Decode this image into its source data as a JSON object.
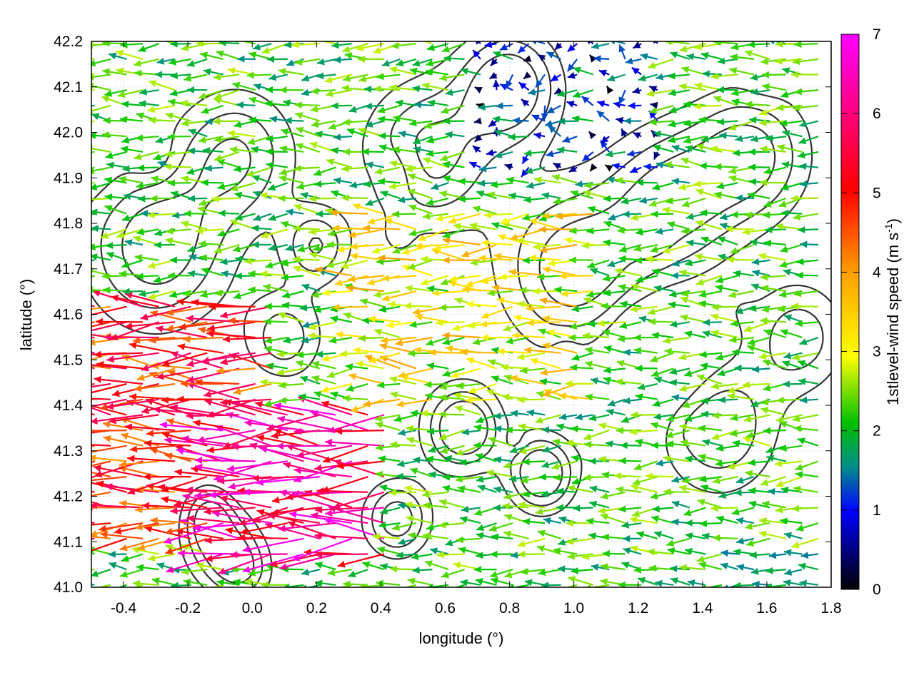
{
  "chart_data": {
    "type": "vector-field",
    "title": "",
    "xlabel": "longitude (°)",
    "ylabel": "latitude (°)",
    "xlim": [
      -0.5,
      1.8
    ],
    "ylim": [
      41.0,
      42.2
    ],
    "xticks": [
      -0.4,
      -0.2,
      0.0,
      0.2,
      0.4,
      0.6,
      0.8,
      1.0,
      1.2,
      1.4,
      1.6,
      1.8
    ],
    "xtick_labels": [
      "-0.4",
      "-0.2",
      "0.0",
      "0.2",
      "0.4",
      "0.6",
      "0.8",
      "1.0",
      "1.2",
      "1.4",
      "1.6",
      "1.8"
    ],
    "yticks": [
      41.0,
      41.1,
      41.2,
      41.3,
      41.4,
      41.5,
      41.6,
      41.7,
      41.8,
      41.9,
      42.0,
      42.1,
      42.2
    ],
    "ytick_labels": [
      "41.0",
      "41.1",
      "41.2",
      "41.3",
      "41.4",
      "41.5",
      "41.6",
      "41.7",
      "41.8",
      "41.9",
      "42.0",
      "42.1",
      "42.2"
    ],
    "grid": true,
    "colorbar": {
      "label": "1stlevel-wind speed (m s",
      "label_superscript": "-1",
      "label_close": ")",
      "range": [
        0,
        7
      ],
      "ticks": [
        0,
        1,
        2,
        3,
        4,
        5,
        6,
        7
      ],
      "tick_labels": [
        "0",
        "1",
        "2",
        "3",
        "4",
        "5",
        "6",
        "7"
      ],
      "colors": [
        "#000000",
        "#0000ff",
        "#00c000",
        "#ffff00",
        "#ffa000",
        "#ff0000",
        "#ff00ff"
      ]
    },
    "wind_field": {
      "prevailing_direction": "from east (vectors point west)",
      "speed_range": [
        0,
        7
      ],
      "regions": [
        {
          "lon": [
            -0.5,
            0.1
          ],
          "lat": [
            41.1,
            41.65
          ],
          "speed": [
            4,
            6
          ],
          "description": "strong easterly flow, orange/red"
        },
        {
          "lon": [
            -0.1,
            0.45
          ],
          "lat": [
            41.05,
            41.4
          ],
          "speed": [
            5,
            7
          ],
          "description": "strongest winds, red/magenta"
        },
        {
          "lon": [
            0.3,
            1.1
          ],
          "lat": [
            41.4,
            41.85
          ],
          "speed": [
            2,
            4
          ],
          "description": "yellow/green band"
        },
        {
          "lon": [
            0.7,
            1.3
          ],
          "lat": [
            41.9,
            42.2
          ],
          "speed": [
            0,
            2
          ],
          "description": "weak blue winds"
        },
        {
          "lon": [
            1.5,
            1.8
          ],
          "lat": [
            41.0,
            41.1
          ],
          "speed": [
            1.5,
            2
          ],
          "description": "teal westward vectors"
        }
      ]
    },
    "contours": {
      "color": "#333333",
      "description": "terrain elevation isolines"
    }
  }
}
